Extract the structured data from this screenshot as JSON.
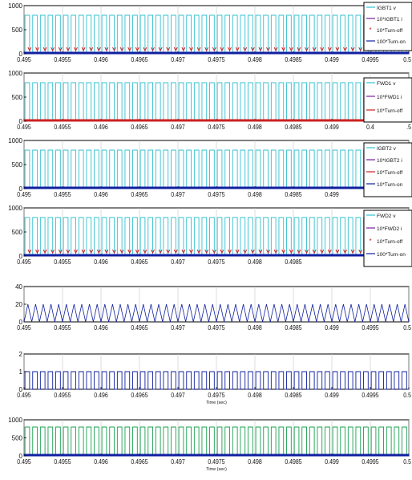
{
  "chart_data": [
    {
      "type": "line",
      "title": "",
      "xlabel": "",
      "ylabel": "",
      "xlim": [
        0.495,
        0.5
      ],
      "ylim": [
        0,
        1000
      ],
      "x_ticks": [
        "0.495",
        "0.4955",
        "0.496",
        "0.4965",
        "0.497",
        "0.4975",
        "0.498",
        "0.4985",
        "0.499",
        "0.4995",
        "0.5"
      ],
      "y_ticks": [
        "0",
        "500",
        "1000"
      ],
      "grid": "vertical",
      "legend_position": "top-right",
      "series": [
        {
          "name": "IGBT1 v",
          "kind": "square-wave",
          "color": "#33c0d0",
          "low": 0,
          "high": 800,
          "cycles": 50
        },
        {
          "name": "10*IGBT1 i",
          "kind": "flat",
          "color": "#7a1fa2",
          "value": 0
        },
        {
          "name": "10*Turn-off",
          "kind": "markers",
          "color": "#cc2020",
          "value": 50,
          "count": 50
        },
        {
          "name": "100*Turn-on",
          "kind": "flat",
          "color": "#1020a0",
          "value": 0
        }
      ]
    },
    {
      "type": "line",
      "title": "",
      "xlabel": "",
      "ylabel": "",
      "xlim": [
        0.495,
        0.5
      ],
      "ylim": [
        0,
        1000
      ],
      "x_ticks": [
        "0.495",
        "0.4955",
        "0.496",
        "0.4965",
        "0.497",
        "0.4975",
        "0.498",
        "0.4985",
        "0.499",
        "0.4",
        ".5"
      ],
      "y_ticks": [
        "0",
        "500",
        "1000"
      ],
      "grid": "vertical",
      "legend_position": "top-right",
      "series": [
        {
          "name": "FWD1 v",
          "kind": "square-wave",
          "color": "#33c0d0",
          "low": 0,
          "high": 800,
          "cycles": 50
        },
        {
          "name": "10*FWD1 i",
          "kind": "flat",
          "color": "#7a1fa2",
          "value": 0
        },
        {
          "name": "10*Turn-off",
          "kind": "flat",
          "color": "#cc2020",
          "value": 0
        }
      ]
    },
    {
      "type": "line",
      "title": "",
      "xlabel": "",
      "ylabel": "",
      "xlim": [
        0.495,
        0.5
      ],
      "ylim": [
        0,
        1000
      ],
      "x_ticks": [
        "0.495",
        "0.4955",
        "0.496",
        "0.4965",
        "0.497",
        "0.4975",
        "0.498",
        "0.4985",
        "0.499",
        "0.4",
        ".5"
      ],
      "y_ticks": [
        "0",
        "500",
        "1000"
      ],
      "grid": "vertical",
      "legend_position": "top-right",
      "series": [
        {
          "name": "IGBT2 v",
          "kind": "square-wave",
          "color": "#33c0d0",
          "low": 0,
          "high": 800,
          "cycles": 50
        },
        {
          "name": "10*IGBT2 i",
          "kind": "flat",
          "color": "#7a1fa2",
          "value": 0
        },
        {
          "name": "10*Turn-off",
          "kind": "flat",
          "color": "#cc2020",
          "value": 0
        },
        {
          "name": "10*Turn-on",
          "kind": "flat",
          "color": "#1020a0",
          "value": 0
        }
      ]
    },
    {
      "type": "line",
      "title": "",
      "xlabel": "",
      "ylabel": "",
      "xlim": [
        0.495,
        0.5
      ],
      "ylim": [
        0,
        1000
      ],
      "x_ticks": [
        "0.495",
        "0.4955",
        "0.496",
        "0.4965",
        "0.497",
        "0.4975",
        "0.498",
        "0.4985",
        "",
        "",
        "5"
      ],
      "y_ticks": [
        "0",
        "500",
        "1000"
      ],
      "grid": "vertical",
      "legend_position": "top-right",
      "series": [
        {
          "name": "FWD2 v",
          "kind": "square-wave",
          "color": "#33c0d0",
          "low": 0,
          "high": 800,
          "cycles": 50
        },
        {
          "name": "10*FWD2 i",
          "kind": "flat",
          "color": "#7a1fa2",
          "value": 0
        },
        {
          "name": "10*Turn-off",
          "kind": "markers",
          "color": "#cc2020",
          "value": 50,
          "count": 50
        },
        {
          "name": "100*Turn-on",
          "kind": "flat",
          "color": "#1020a0",
          "value": 0
        }
      ]
    },
    {
      "type": "line",
      "title": "",
      "xlabel": "",
      "ylabel": "",
      "xlim": [
        0.495,
        0.5
      ],
      "ylim": [
        0,
        40
      ],
      "x_ticks": [
        "0.495",
        "0.4955",
        "0.496",
        "0.4965",
        "0.497",
        "0.4975",
        "0.498",
        "0.4985",
        "0.499",
        "0.4995",
        "0.5"
      ],
      "y_ticks": [
        "0",
        "20",
        "40"
      ],
      "grid": "vertical",
      "series": [
        {
          "kind": "triangle-wave",
          "color": "#1020a0",
          "low": 0,
          "high": 20,
          "cycles": 50
        }
      ]
    },
    {
      "type": "line",
      "title": "",
      "xlabel": "Time (sec)",
      "ylabel": "",
      "xlim": [
        0.495,
        0.5
      ],
      "ylim": [
        0,
        2
      ],
      "x_ticks": [
        "0.495",
        "0.4955",
        "0.496",
        "0.4965",
        "0.497",
        "0.4975",
        "0.498",
        "0.4985",
        "0.499",
        "0.4995",
        "0.5"
      ],
      "y_ticks": [
        "0",
        "1",
        "2"
      ],
      "grid": "vertical",
      "series": [
        {
          "kind": "square-wave",
          "color": "#1020a0",
          "low": 0,
          "high": 1,
          "cycles": 50
        }
      ]
    },
    {
      "type": "line",
      "title": "",
      "xlabel": "Time (sec)",
      "ylabel": "",
      "xlim": [
        0.495,
        0.5
      ],
      "ylim": [
        0,
        1000
      ],
      "x_ticks": [
        "0.495",
        "0.4955",
        "0.496",
        "0.4965",
        "0.497",
        "0.4975",
        "0.498",
        "0.4985",
        "0.499",
        "0.4995",
        "0.5"
      ],
      "y_ticks": [
        "0",
        "500",
        "1000"
      ],
      "grid": "vertical",
      "series": [
        {
          "kind": "square-wave",
          "color": "#1aa050",
          "low": 0,
          "high": 800,
          "cycles": 50
        },
        {
          "kind": "flat",
          "color": "#1020a0",
          "value": 0
        }
      ]
    }
  ]
}
